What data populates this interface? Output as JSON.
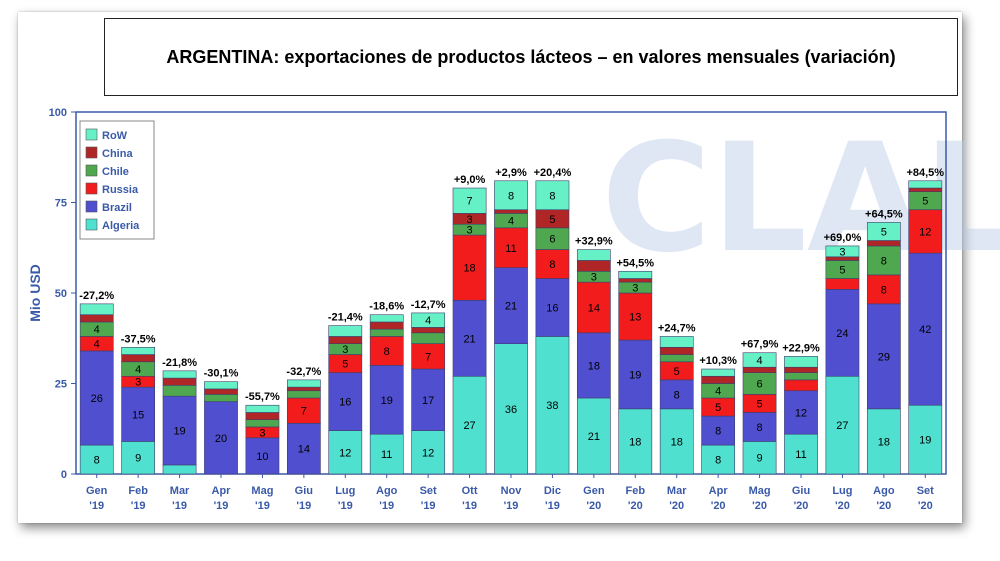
{
  "chart_data": {
    "type": "bar",
    "stacked": true,
    "title": "ARGENTINA: exportaciones de productos lácteos – en valores mensuales (variación)",
    "ylabel": "Mio USD",
    "ylim": [
      0,
      100
    ],
    "yticks": [
      0,
      25,
      50,
      75,
      100
    ],
    "grid": false,
    "legend_position": "top-left",
    "watermark": "CLAL",
    "categories": [
      [
        "Gen",
        "'19"
      ],
      [
        "Feb",
        "'19"
      ],
      [
        "Mar",
        "'19"
      ],
      [
        "Apr",
        "'19"
      ],
      [
        "Mag",
        "'19"
      ],
      [
        "Giu",
        "'19"
      ],
      [
        "Lug",
        "'19"
      ],
      [
        "Ago",
        "'19"
      ],
      [
        "Set",
        "'19"
      ],
      [
        "Ott",
        "'19"
      ],
      [
        "Nov",
        "'19"
      ],
      [
        "Dic",
        "'19"
      ],
      [
        "Gen",
        "'20"
      ],
      [
        "Feb",
        "'20"
      ],
      [
        "Mar",
        "'20"
      ],
      [
        "Apr",
        "'20"
      ],
      [
        "Mag",
        "'20"
      ],
      [
        "Giu",
        "'20"
      ],
      [
        "Lug",
        "'20"
      ],
      [
        "Ago",
        "'20"
      ],
      [
        "Set",
        "'20"
      ]
    ],
    "variation": [
      "-27,2%",
      "-37,5%",
      "-21,8%",
      "-30,1%",
      "-55,7%",
      "-32,7%",
      "-21,4%",
      "-18,6%",
      "-12,7%",
      "+9,0%",
      "+2,9%",
      "+20,4%",
      "+32,9%",
      "+54,5%",
      "+24,7%",
      "+10,3%",
      "+67,9%",
      "+22,9%",
      "+69,0%",
      "+64,5%",
      "+84,5%"
    ],
    "series": [
      {
        "name": "Algeria",
        "color": "#4fe0cf",
        "values": [
          8,
          9,
          2.5,
          0,
          0,
          0,
          12,
          11,
          12,
          27,
          36,
          38,
          21,
          18,
          18,
          8,
          9,
          11,
          27,
          18,
          19
        ],
        "labels": [
          "8",
          "9",
          "",
          "",
          "",
          "",
          "12",
          "11",
          "12",
          "27",
          "36",
          "38",
          "21",
          "18",
          "18",
          "8",
          "9",
          "11",
          "27",
          "18",
          "19"
        ]
      },
      {
        "name": "Brazil",
        "color": "#4f4fcf",
        "values": [
          26,
          15,
          19,
          20,
          10,
          14,
          16,
          19,
          17,
          21,
          21,
          16,
          18,
          19,
          8,
          8,
          8,
          12,
          24,
          29,
          42
        ],
        "labels": [
          "26",
          "15",
          "19",
          "20",
          "10",
          "14",
          "16",
          "19",
          "17",
          "21",
          "21",
          "16",
          "18",
          "19",
          "8",
          "8",
          "8",
          "12",
          "24",
          "29",
          "42"
        ]
      },
      {
        "name": "Russia",
        "color": "#f21c1c",
        "values": [
          4,
          3,
          0,
          0,
          3,
          7,
          5,
          8,
          7,
          18,
          11,
          8,
          14,
          13,
          5,
          5,
          5,
          3,
          3,
          8,
          12
        ],
        "labels": [
          "4",
          "3",
          "",
          "",
          "3",
          "7",
          "5",
          "8",
          "7",
          "18",
          "11",
          "8",
          "14",
          "13",
          "5",
          "5",
          "5",
          "",
          "",
          "8",
          "12"
        ]
      },
      {
        "name": "Chile",
        "color": "#4fa84f",
        "values": [
          4,
          4,
          3,
          2,
          2,
          2,
          3,
          2,
          3,
          3,
          4,
          6,
          3,
          3,
          2,
          4,
          6,
          2,
          5,
          8,
          5
        ],
        "labels": [
          "4",
          "4",
          "",
          "",
          "",
          "",
          "3",
          "",
          "",
          "3",
          "4",
          "6",
          "3",
          "3",
          "",
          "4",
          "6",
          "",
          "5",
          "8",
          "5"
        ]
      },
      {
        "name": "China",
        "color": "#b02626",
        "values": [
          2,
          2,
          2,
          1.5,
          2,
          1,
          2,
          2,
          1.5,
          3,
          1,
          5,
          3,
          1,
          2,
          2,
          1.5,
          1.5,
          1,
          1.5,
          1
        ],
        "labels": [
          "",
          "",
          "",
          "",
          "",
          "",
          "",
          "",
          "",
          "3",
          "",
          "5",
          "",
          "",
          "",
          "",
          "",
          "",
          "",
          "",
          ""
        ]
      },
      {
        "name": "RoW",
        "color": "#66f0c6",
        "values": [
          3,
          2,
          2,
          2,
          2,
          2,
          3,
          2,
          4,
          7,
          8,
          8,
          3,
          2,
          3,
          2,
          4,
          3,
          3,
          5,
          2
        ],
        "labels": [
          "",
          "",
          "",
          "",
          "",
          "",
          "",
          "",
          "4",
          "7",
          "8",
          "8",
          "",
          "",
          "",
          "",
          "4",
          "",
          "3",
          "5",
          ""
        ]
      }
    ]
  }
}
